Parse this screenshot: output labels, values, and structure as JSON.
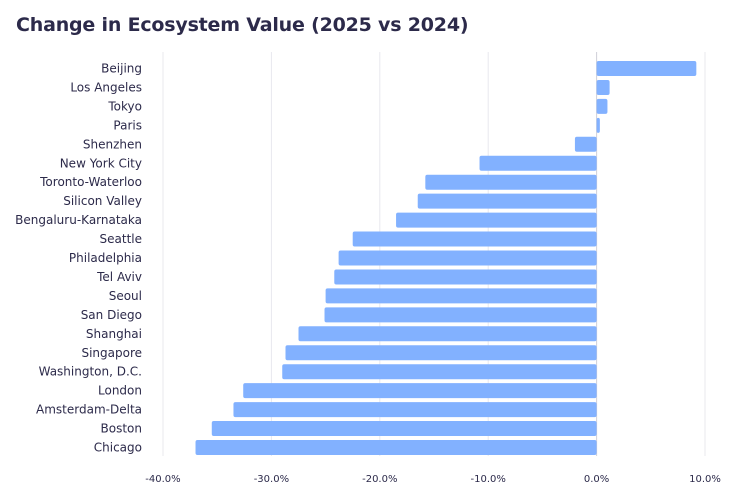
{
  "chart_data": {
    "type": "bar",
    "orientation": "horizontal",
    "title": "Change in Ecosystem Value (2025 vs 2024)",
    "categories": [
      "Beijing",
      "Los Angeles",
      "Tokyo",
      "Paris",
      "Shenzhen",
      "New York City",
      "Toronto-Waterloo",
      "Silicon Valley",
      "Bengaluru-Karnataka",
      "Seattle",
      "Philadelphia",
      "Tel Aviv",
      "Seoul",
      "San Diego",
      "Shanghai",
      "Singapore",
      "Washington, D.C.",
      "London",
      "Amsterdam-Delta",
      "Boston",
      "Chicago"
    ],
    "values": [
      9.2,
      1.2,
      1.0,
      0.3,
      -2.0,
      -10.8,
      -15.8,
      -16.5,
      -18.5,
      -22.5,
      -23.8,
      -24.2,
      -25.0,
      -25.1,
      -27.5,
      -28.7,
      -29.0,
      -32.6,
      -33.5,
      -35.5,
      -37.0
    ],
    "unit": "%",
    "xlim": [
      -40,
      10
    ],
    "xticks": [
      "-40.0%",
      "-30.0%",
      "-20.0%",
      "-10.0%",
      "0.0%",
      "10.0%"
    ],
    "xtick_values": [
      -40,
      -30,
      -20,
      -10,
      0,
      10
    ],
    "grid": true,
    "legend": "none",
    "bar_color": "#82b1ff",
    "grid_color": "#e8e8ee",
    "text_color": "#2c2a4a"
  }
}
